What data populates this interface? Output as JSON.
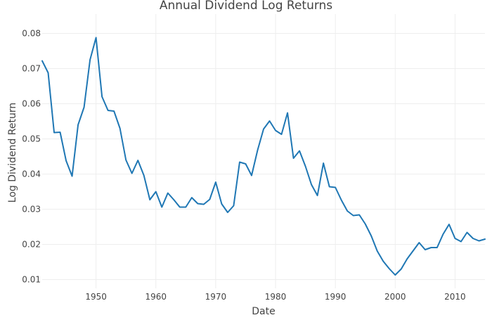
{
  "chart_data": {
    "type": "line",
    "title": "Annual Dividend Log Returns",
    "xlabel": "Date",
    "ylabel": "Log Dividend Return",
    "xlim": [
      1941,
      2015
    ],
    "ylim": [
      0.0075,
      0.0855
    ],
    "x_ticks": [
      1950,
      1960,
      1970,
      1980,
      1990,
      2000,
      2010
    ],
    "y_ticks": [
      0.01,
      0.02,
      0.03,
      0.04,
      0.05,
      0.06,
      0.07,
      0.08
    ],
    "grid": true,
    "series": [
      {
        "color": "#1f77b4",
        "x": [
          1941,
          1942,
          1943,
          1944,
          1945,
          1946,
          1947,
          1948,
          1949,
          1950,
          1951,
          1952,
          1953,
          1954,
          1955,
          1956,
          1957,
          1958,
          1959,
          1960,
          1961,
          1962,
          1963,
          1964,
          1965,
          1966,
          1967,
          1968,
          1969,
          1970,
          1971,
          1972,
          1973,
          1974,
          1975,
          1976,
          1977,
          1978,
          1979,
          1980,
          1981,
          1982,
          1983,
          1984,
          1985,
          1986,
          1987,
          1988,
          1989,
          1990,
          1991,
          1992,
          1993,
          1994,
          1995,
          1996,
          1997,
          1998,
          1999,
          2000,
          2001,
          2002,
          2003,
          2004,
          2005,
          2006,
          2007,
          2008,
          2009,
          2010,
          2011,
          2012,
          2013,
          2014,
          2015
        ],
        "values": [
          0.0722,
          0.0688,
          0.0518,
          0.0519,
          0.0438,
          0.0394,
          0.054,
          0.059,
          0.0725,
          0.0788,
          0.062,
          0.0581,
          0.0579,
          0.053,
          0.044,
          0.0402,
          0.0439,
          0.0396,
          0.0327,
          0.035,
          0.0306,
          0.0346,
          0.0327,
          0.0306,
          0.0306,
          0.0333,
          0.0316,
          0.0314,
          0.0328,
          0.0377,
          0.0315,
          0.0291,
          0.031,
          0.0434,
          0.0429,
          0.0396,
          0.0468,
          0.0528,
          0.0551,
          0.0524,
          0.0513,
          0.0574,
          0.0445,
          0.0466,
          0.0422,
          0.037,
          0.0339,
          0.0431,
          0.0364,
          0.0362,
          0.0326,
          0.0295,
          0.0282,
          0.0284,
          0.0258,
          0.0224,
          0.0181,
          0.0152,
          0.0131,
          0.0113,
          0.013,
          0.0159,
          0.0182,
          0.0205,
          0.0185,
          0.0191,
          0.0191,
          0.0229,
          0.0257,
          0.0217,
          0.0208,
          0.0234,
          0.0217,
          0.021,
          0.0215
        ]
      }
    ]
  }
}
